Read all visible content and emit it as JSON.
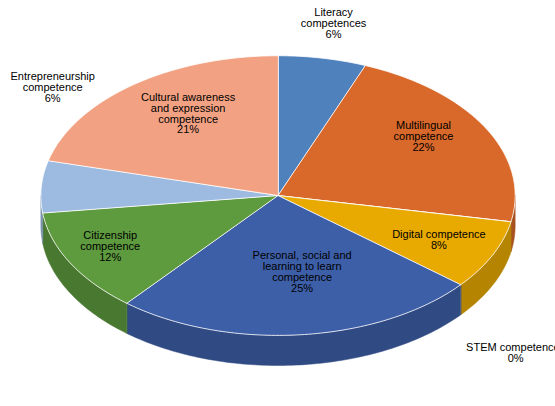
{
  "chart_data": {
    "type": "pie",
    "categories": [
      "Literacy competences",
      "Multilingual competence",
      "STEM competences",
      "Digital competence",
      "Personal, social and learning to learn competence",
      "Citizenship competence",
      "Entrepreneurship competence",
      "Cultural awareness and expression competence"
    ],
    "values": [
      6,
      22,
      0,
      8,
      25,
      12,
      6,
      21
    ],
    "value_labels": [
      "6%",
      "22%",
      "0%",
      "8%",
      "25%",
      "12%",
      "6%",
      "21%"
    ],
    "colors": [
      "#4f81bd",
      "#d8692a",
      "#a5a5a5",
      "#e8a900",
      "#3d5fa8",
      "#5e9a3e",
      "#9dbbe0",
      "#f2a283"
    ],
    "data_labels": true
  }
}
